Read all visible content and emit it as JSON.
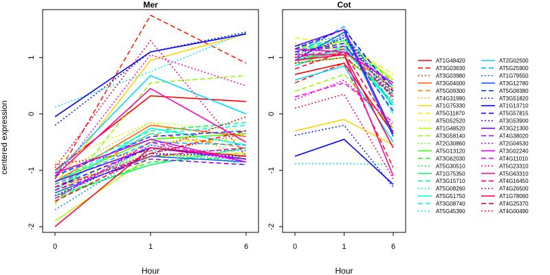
{
  "chart_data": {
    "type": "line",
    "ylabel": "centered expression",
    "xlabel": "Hour",
    "x": [
      "0",
      "1",
      "6"
    ],
    "grid": false,
    "legend_position": "right",
    "panels": [
      {
        "title": "Mer",
        "ylim": [
          -2.1,
          1.85
        ],
        "yticks": [
          -2,
          -1,
          0,
          1
        ],
        "series": [
          {
            "name": "AT1G48420",
            "values": [
              -1.0,
              0.32,
              0.22
            ]
          },
          {
            "name": "AT3G03630",
            "values": [
              -1.15,
              1.75,
              0.9
            ]
          },
          {
            "name": "AT3G03980",
            "values": [
              -1.35,
              -0.7,
              -0.35
            ]
          },
          {
            "name": "AT3G04000",
            "values": [
              -1.2,
              -0.2,
              -0.4
            ]
          },
          {
            "name": "AT5G09300",
            "values": [
              -1.3,
              -0.35,
              -0.6
            ]
          },
          {
            "name": "AT4G31990",
            "values": [
              -1.1,
              -0.15,
              -0.75
            ]
          },
          {
            "name": "AT1G75330",
            "values": [
              -1.25,
              0.95,
              1.42
            ]
          },
          {
            "name": "AT5G11870",
            "values": [
              -1.4,
              -0.5,
              -0.45
            ]
          },
          {
            "name": "AT5G52520",
            "values": [
              -0.85,
              -0.15,
              -0.3
            ]
          },
          {
            "name": "AT1G48520",
            "values": [
              -1.9,
              -0.75,
              -0.7
            ]
          },
          {
            "name": "AT3G58140",
            "values": [
              -1.6,
              0.55,
              0.68
            ]
          },
          {
            "name": "AT2G30860",
            "values": [
              -1.45,
              -0.6,
              -0.8
            ]
          },
          {
            "name": "AT5G13120",
            "values": [
              -1.2,
              -0.45,
              -0.35
            ]
          },
          {
            "name": "AT3G62030",
            "values": [
              -1.5,
              -0.85,
              -0.75
            ]
          },
          {
            "name": "AT5G30510",
            "values": [
              -1.3,
              -0.7,
              -0.85
            ]
          },
          {
            "name": "AT1G75350",
            "values": [
              -1.45,
              -0.9,
              -0.6
            ]
          },
          {
            "name": "AT3G15710",
            "values": [
              -1.1,
              -0.3,
              -0.15
            ]
          },
          {
            "name": "AT5G08260",
            "values": [
              -1.55,
              -0.55,
              -0.9
            ]
          },
          {
            "name": "AT5G51750",
            "values": [
              -1.35,
              -0.25,
              -0.55
            ]
          },
          {
            "name": "AT3G08740",
            "values": [
              -1.2,
              -0.35,
              -0.2
            ]
          },
          {
            "name": "AT5G45390",
            "values": [
              0.12,
              0.75,
              1.45
            ]
          },
          {
            "name": "AT2G02500",
            "values": [
              -1.05,
              0.68,
              0.0
            ]
          },
          {
            "name": "AT5G25900",
            "values": [
              -1.25,
              -0.5,
              -0.55
            ]
          },
          {
            "name": "AT1G79550",
            "values": [
              -1.7,
              -0.65,
              -0.65
            ]
          },
          {
            "name": "AT3G12780",
            "values": [
              -1.4,
              -0.75,
              -0.85
            ]
          },
          {
            "name": "AT5G08380",
            "values": [
              -1.1,
              -0.4,
              -0.3
            ]
          },
          {
            "name": "AT3G51820",
            "values": [
              -0.2,
              1.1,
              1.45
            ]
          },
          {
            "name": "AT1G13710",
            "values": [
              -0.05,
              1.1,
              1.42
            ]
          },
          {
            "name": "AT5G57815",
            "values": [
              -1.3,
              -0.6,
              -0.8
            ]
          },
          {
            "name": "AT3G53900",
            "values": [
              -1.45,
              -0.7,
              -0.75
            ]
          },
          {
            "name": "AT3G21300",
            "values": [
              -1.2,
              -0.6,
              -0.8
            ]
          },
          {
            "name": "AT4G38020",
            "values": [
              -1.35,
              -0.8,
              -0.9
            ]
          },
          {
            "name": "AT2G04530",
            "values": [
              -1.5,
              -0.55,
              -0.85
            ]
          },
          {
            "name": "AT3G02240",
            "values": [
              -1.05,
              -0.45,
              -0.85
            ]
          },
          {
            "name": "AT4G11010",
            "values": [
              -1.5,
              -0.5,
              -0.85
            ]
          },
          {
            "name": "AT5G23310",
            "values": [
              -1.15,
              1.05,
              0.5
            ]
          },
          {
            "name": "AT5G63310",
            "values": [
              -1.1,
              0.45,
              -0.5
            ]
          },
          {
            "name": "AT4G16450",
            "values": [
              -1.3,
              -0.75,
              -0.6
            ]
          },
          {
            "name": "AT4G26500",
            "values": [
              -0.95,
              1.3,
              -0.75
            ]
          },
          {
            "name": "AT1G78060",
            "values": [
              -2.0,
              -0.6,
              -0.75
            ]
          },
          {
            "name": "AT4G25370",
            "values": [
              -1.55,
              -0.7,
              -0.3
            ]
          },
          {
            "name": "AT4G00490",
            "values": [
              -0.9,
              -0.65,
              -0.05
            ]
          }
        ]
      },
      {
        "title": "Cot",
        "ylim": [
          -2.1,
          1.85
        ],
        "yticks": [
          -2,
          -1,
          0,
          1
        ],
        "series": [
          {
            "name": "AT1G48420",
            "values": [
              0.7,
              0.9,
              -0.35
            ]
          },
          {
            "name": "AT3G03630",
            "values": [
              0.55,
              0.9,
              -0.95
            ]
          },
          {
            "name": "AT3G03980",
            "values": [
              1.05,
              1.3,
              0.3
            ]
          },
          {
            "name": "AT3G04000",
            "values": [
              0.95,
              1.1,
              0.45
            ]
          },
          {
            "name": "AT5G09300",
            "values": [
              1.15,
              1.2,
              0.5
            ]
          },
          {
            "name": "AT4G31990",
            "values": [
              1.25,
              1.05,
              0.6
            ]
          },
          {
            "name": "AT1G75330",
            "values": [
              -0.3,
              -0.1,
              -0.55
            ]
          },
          {
            "name": "AT5G11870",
            "values": [
              1.35,
              1.25,
              0.7
            ]
          },
          {
            "name": "AT5G52520",
            "values": [
              1.2,
              1.15,
              0.65
            ]
          },
          {
            "name": "AT1G48520",
            "values": [
              1.1,
              1.3,
              0.6
            ]
          },
          {
            "name": "AT3G58140",
            "values": [
              0.4,
              0.7,
              -0.25
            ]
          },
          {
            "name": "AT2G30860",
            "values": [
              1.0,
              1.2,
              0.4
            ]
          },
          {
            "name": "AT5G13120",
            "values": [
              0.9,
              1.0,
              0.35
            ]
          },
          {
            "name": "AT3G62030",
            "values": [
              1.15,
              1.35,
              0.55
            ]
          },
          {
            "name": "AT5G30510",
            "values": [
              1.05,
              1.25,
              0.45
            ]
          },
          {
            "name": "AT1G75350",
            "values": [
              0.95,
              1.15,
              0.2
            ]
          },
          {
            "name": "AT3G15710",
            "values": [
              1.2,
              1.3,
              0.5
            ]
          },
          {
            "name": "AT5G08260",
            "values": [
              1.0,
              1.1,
              0.3
            ]
          },
          {
            "name": "AT5G51750",
            "values": [
              0.85,
              1.2,
              0.15
            ]
          },
          {
            "name": "AT3G08740",
            "values": [
              1.1,
              1.35,
              0.0
            ]
          },
          {
            "name": "AT5G45390",
            "values": [
              -0.88,
              -0.88,
              -0.9
            ]
          },
          {
            "name": "AT2G02500",
            "values": [
              0.6,
              0.85,
              -0.5
            ]
          },
          {
            "name": "AT5G25900",
            "values": [
              1.05,
              1.55,
              0.1
            ]
          },
          {
            "name": "AT1G79550",
            "values": [
              1.2,
              1.4,
              0.25
            ]
          },
          {
            "name": "AT3G12780",
            "values": [
              0.95,
              1.45,
              -0.4
            ]
          },
          {
            "name": "AT5G08380",
            "values": [
              1.1,
              1.25,
              0.05
            ]
          },
          {
            "name": "AT3G51820",
            "values": [
              -0.38,
              -0.2,
              -1.3
            ]
          },
          {
            "name": "AT1G13710",
            "values": [
              -0.75,
              -0.45,
              -1.25
            ]
          },
          {
            "name": "AT5G57815",
            "values": [
              1.15,
              1.5,
              0.4
            ]
          },
          {
            "name": "AT3G53900",
            "values": [
              1.0,
              1.35,
              0.3
            ]
          },
          {
            "name": "AT3G21300",
            "values": [
              1.2,
              1.5,
              -0.35
            ]
          },
          {
            "name": "AT4G38020",
            "values": [
              1.1,
              1.2,
              0.5
            ]
          },
          {
            "name": "AT2G04530",
            "values": [
              0.9,
              1.4,
              0.35
            ]
          },
          {
            "name": "AT3G02240",
            "values": [
              1.15,
              1.1,
              0.55
            ]
          },
          {
            "name": "AT4G11010",
            "values": [
              0.3,
              0.55,
              -0.15
            ]
          },
          {
            "name": "AT5G23310",
            "values": [
              0.25,
              0.6,
              -0.2
            ]
          },
          {
            "name": "AT5G63310",
            "values": [
              1.05,
              1.05,
              -1.1
            ]
          },
          {
            "name": "AT4G16450",
            "values": [
              1.0,
              1.15,
              0.3
            ]
          },
          {
            "name": "AT4G26500",
            "values": [
              0.1,
              0.35,
              -1.15
            ]
          },
          {
            "name": "AT1G78060",
            "values": [
              0.95,
              1.05,
              -0.6
            ]
          },
          {
            "name": "AT4G25370",
            "values": [
              0.8,
              1.1,
              -0.3
            ]
          },
          {
            "name": "AT4G00490",
            "values": [
              0.9,
              1.0,
              0.4
            ]
          }
        ]
      }
    ],
    "legend": {
      "columns": [
        [
          {
            "label": "AT1G48420",
            "color": "#ff0000",
            "dash": "solid"
          },
          {
            "label": "AT3G03630",
            "color": "#ff1a00",
            "dash": "dashed"
          },
          {
            "label": "AT3G03980",
            "color": "#ff4000",
            "dash": "dotted"
          },
          {
            "label": "AT3G04000",
            "color": "#ff6600",
            "dash": "solid"
          },
          {
            "label": "AT5G09300",
            "color": "#ff8c00",
            "dash": "dashed"
          },
          {
            "label": "AT4G31990",
            "color": "#ffb000",
            "dash": "dotted"
          },
          {
            "label": "AT1G75330",
            "color": "#ffd500",
            "dash": "solid"
          },
          {
            "label": "AT5G11870",
            "color": "#f7ef00",
            "dash": "dashed"
          },
          {
            "label": "AT5G52520",
            "color": "#d9ff00",
            "dash": "dotted"
          },
          {
            "label": "AT1G48520",
            "color": "#b3ff00",
            "dash": "solid"
          },
          {
            "label": "AT3G58140",
            "color": "#8cff00",
            "dash": "dashed"
          },
          {
            "label": "AT2G30860",
            "color": "#66ff00",
            "dash": "dotted"
          },
          {
            "label": "AT5G13120",
            "color": "#40ff00",
            "dash": "solid"
          },
          {
            "label": "AT3G62030",
            "color": "#1aff1a",
            "dash": "dashed"
          },
          {
            "label": "AT5G30510",
            "color": "#00ff40",
            "dash": "dotted"
          },
          {
            "label": "AT1G75350",
            "color": "#00ff66",
            "dash": "solid"
          },
          {
            "label": "AT3G15710",
            "color": "#00ff8c",
            "dash": "dashed"
          },
          {
            "label": "AT5G08260",
            "color": "#00ffb3",
            "dash": "dotted"
          },
          {
            "label": "AT5G51750",
            "color": "#00ffd9",
            "dash": "solid"
          },
          {
            "label": "AT3G08740",
            "color": "#00f5f5",
            "dash": "dashed"
          },
          {
            "label": "AT5G45390",
            "color": "#00e5ff",
            "dash": "dotted"
          }
        ],
        [
          {
            "label": "AT2G02500",
            "color": "#00d9ff",
            "dash": "solid"
          },
          {
            "label": "AT5G25900",
            "color": "#00b3ff",
            "dash": "dashed"
          },
          {
            "label": "AT1G79550",
            "color": "#008cff",
            "dash": "dotted"
          },
          {
            "label": "AT3G12780",
            "color": "#0066ff",
            "dash": "solid"
          },
          {
            "label": "AT5G08380",
            "color": "#0040ff",
            "dash": "dashed"
          },
          {
            "label": "AT3G51820",
            "color": "#001aff",
            "dash": "dotted"
          },
          {
            "label": "AT1G13710",
            "color": "#0000ff",
            "dash": "solid"
          },
          {
            "label": "AT5G57815",
            "color": "#1a00ff",
            "dash": "dashed"
          },
          {
            "label": "AT3G53900",
            "color": "#4000ff",
            "dash": "dotted"
          },
          {
            "label": "AT3G21300",
            "color": "#6600ff",
            "dash": "solid"
          },
          {
            "label": "AT4G38020",
            "color": "#8c00ff",
            "dash": "dashed"
          },
          {
            "label": "AT2G04530",
            "color": "#b300ff",
            "dash": "dotted"
          },
          {
            "label": "AT3G02240",
            "color": "#d900ff",
            "dash": "solid"
          },
          {
            "label": "AT4G11010",
            "color": "#ff00ff",
            "dash": "dashed"
          },
          {
            "label": "AT5G23310",
            "color": "#ff00d9",
            "dash": "dotted"
          },
          {
            "label": "AT5G63310",
            "color": "#ff00b3",
            "dash": "solid"
          },
          {
            "label": "AT4G16450",
            "color": "#ff008c",
            "dash": "dashed"
          },
          {
            "label": "AT4G26500",
            "color": "#ff0066",
            "dash": "dotted"
          },
          {
            "label": "AT1G78060",
            "color": "#ff0040",
            "dash": "solid"
          },
          {
            "label": "AT4G25370",
            "color": "#ff001a",
            "dash": "dashed"
          },
          {
            "label": "AT4G00490",
            "color": "#ff0010",
            "dash": "dotted"
          }
        ]
      ]
    }
  }
}
